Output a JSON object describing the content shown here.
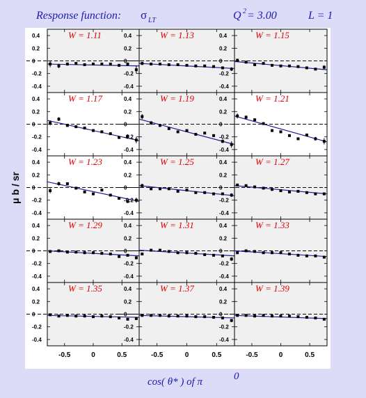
{
  "header": {
    "response_label": "Response function:",
    "sigma_base": "σ",
    "sigma_sub": "LT",
    "q2_prefix": "Q",
    "q2_sup": "2",
    "q2_value": " = 3.00",
    "l_label": "L = 1"
  },
  "y_axis_label": "μ b / sr",
  "x_axis_label": {
    "prefix": "cos( θ* )  of  π",
    "sup": "0"
  },
  "colors": {
    "background": "#dcdcf8",
    "panel_shaded": "#f0f0f0",
    "panel_white": "#ffffff",
    "fit_line": "#1c1c9c",
    "w_label": "#e00000",
    "header_text": "#1a1ab0"
  },
  "chart_data": {
    "type": "scatter",
    "grid": {
      "rows": 5,
      "cols": 3
    },
    "xlim": [
      -0.8,
      0.8
    ],
    "ylim": [
      -0.5,
      0.5
    ],
    "x_ticks": [
      "-0.5",
      "0",
      "0.5"
    ],
    "y_ticks": [
      "0.4",
      "0.2",
      "0",
      "-0.2",
      "-0.4"
    ],
    "x": [
      -0.75,
      -0.6,
      -0.45,
      -0.3,
      -0.15,
      0,
      0.15,
      0.3,
      0.45,
      0.6,
      0.75
    ],
    "panels": [
      {
        "label": "W = 1.11",
        "shaded": true,
        "y": [
          -0.05,
          -0.08,
          -0.05,
          -0.04,
          -0.06,
          -0.05,
          -0.05,
          -0.05,
          -0.07,
          -0.05,
          -0.14
        ],
        "err": [
          0.05,
          0.035,
          0.025,
          0.02,
          0.02,
          0.02,
          0.02,
          0.02,
          0.02,
          0.025,
          0.06
        ],
        "fit": [
          -0.05,
          -0.08
        ]
      },
      {
        "label": "W = 1.13",
        "shaded": true,
        "y": [
          -0.04,
          -0.05,
          -0.05,
          -0.06,
          -0.06,
          -0.07,
          -0.08,
          -0.08,
          -0.09,
          -0.11,
          -0.13
        ],
        "err": [
          0.025,
          0.015,
          0.012,
          0.01,
          0.01,
          0.01,
          0.01,
          0.01,
          0.012,
          0.015,
          0.03
        ],
        "fit": [
          -0.04,
          -0.12
        ]
      },
      {
        "label": "W = 1.15",
        "shaded": true,
        "y": [
          0.01,
          -0.02,
          -0.06,
          -0.04,
          -0.07,
          -0.08,
          -0.08,
          -0.09,
          -0.11,
          -0.13,
          -0.1
        ],
        "err": [
          0.025,
          0.015,
          0.012,
          0.01,
          0.01,
          0.01,
          0.01,
          0.01,
          0.012,
          0.015,
          0.03
        ],
        "fit": [
          -0.01,
          -0.14
        ]
      },
      {
        "label": "W = 1.17",
        "shaded": false,
        "y": [
          0.02,
          0.08,
          -0.02,
          -0.04,
          -0.06,
          -0.1,
          -0.12,
          -0.15,
          -0.21,
          -0.19,
          -0.25
        ],
        "err": [
          0.04,
          0.03,
          0.02,
          0.015,
          0.015,
          0.015,
          0.015,
          0.015,
          0.02,
          0.03,
          0.05
        ],
        "fit": [
          0.06,
          -0.26
        ]
      },
      {
        "label": "W = 1.19",
        "shaded": true,
        "y": [
          0.12,
          0.02,
          -0.02,
          -0.07,
          -0.12,
          -0.1,
          -0.16,
          -0.14,
          -0.18,
          -0.27,
          -0.32
        ],
        "err": [
          0.04,
          0.03,
          0.02,
          0.015,
          0.015,
          0.015,
          0.015,
          0.015,
          0.02,
          0.03,
          0.05
        ],
        "fit": [
          0.08,
          -0.32
        ]
      },
      {
        "label": "W = 1.21",
        "shaded": false,
        "y": [
          0.13,
          0.11,
          0.07,
          0.01,
          -0.1,
          -0.12,
          -0.18,
          -0.23,
          -0.17,
          -0.23,
          -0.27
        ],
        "err": [
          0.04,
          0.03,
          0.02,
          0.015,
          0.015,
          0.015,
          0.015,
          0.015,
          0.02,
          0.03,
          0.05
        ],
        "fit": [
          0.13,
          -0.28
        ]
      },
      {
        "label": "W = 1.23",
        "shaded": false,
        "y": [
          -0.05,
          0.06,
          0.06,
          -0.01,
          -0.07,
          -0.1,
          -0.04,
          -0.12,
          -0.17,
          -0.22,
          -0.2
        ],
        "err": [
          0.04,
          0.03,
          0.02,
          0.015,
          0.015,
          0.015,
          0.015,
          0.015,
          0.02,
          0.025,
          0.04
        ],
        "fit": [
          0.09,
          -0.22
        ]
      },
      {
        "label": "W = 1.25",
        "shaded": true,
        "y": [
          0.03,
          -0.02,
          -0.02,
          -0.02,
          -0.06,
          -0.04,
          -0.08,
          -0.08,
          -0.1,
          -0.1,
          -0.12
        ],
        "err": [
          0.03,
          0.02,
          0.015,
          0.012,
          0.012,
          0.012,
          0.012,
          0.012,
          0.015,
          0.02,
          0.03
        ],
        "fit": [
          0.03,
          -0.13
        ]
      },
      {
        "label": "W = 1.27",
        "shaded": true,
        "y": [
          0.04,
          0.03,
          0.01,
          -0.01,
          -0.03,
          -0.05,
          -0.07,
          -0.06,
          -0.08,
          -0.1,
          -0.1
        ],
        "err": [
          0.02,
          0.015,
          0.012,
          0.01,
          0.01,
          0.01,
          0.01,
          0.01,
          0.012,
          0.015,
          0.02
        ],
        "fit": [
          0.03,
          -0.1
        ]
      },
      {
        "label": "W = 1.29",
        "shaded": true,
        "y": [
          -0.01,
          0,
          -0.02,
          -0.02,
          -0.03,
          -0.03,
          -0.04,
          -0.05,
          -0.09,
          -0.07,
          -0.11
        ],
        "err": [
          0.02,
          0.015,
          0.012,
          0.01,
          0.01,
          0.01,
          0.01,
          0.01,
          0.012,
          0.015,
          0.025
        ],
        "fit": [
          0,
          -0.08
        ]
      },
      {
        "label": "W = 1.31",
        "shaded": true,
        "y": [
          -0.05,
          0.01,
          0.01,
          -0.01,
          -0.03,
          -0.03,
          -0.04,
          -0.06,
          -0.07,
          -0.08,
          -0.13
        ],
        "err": [
          0.02,
          0.015,
          0.012,
          0.01,
          0.01,
          0.01,
          0.01,
          0.01,
          0.012,
          0.015,
          0.03
        ],
        "fit": [
          0.01,
          -0.08
        ]
      },
      {
        "label": "W = 1.33",
        "shaded": true,
        "y": [
          -0.03,
          0,
          -0.01,
          -0.03,
          -0.03,
          -0.03,
          -0.05,
          -0.07,
          -0.08,
          -0.08,
          -0.1
        ],
        "err": [
          0.02,
          0.015,
          0.012,
          0.01,
          0.01,
          0.01,
          0.01,
          0.01,
          0.012,
          0.015,
          0.02
        ],
        "fit": [
          0,
          -0.09
        ]
      },
      {
        "label": "W = 1.35",
        "shaded": true,
        "y": [
          -0.01,
          -0.03,
          -0.02,
          -0.03,
          -0.03,
          -0.04,
          -0.03,
          -0.04,
          -0.06,
          -0.08,
          -0.07
        ],
        "err": [
          0.02,
          0.015,
          0.012,
          0.01,
          0.01,
          0.01,
          0.01,
          0.01,
          0.012,
          0.015,
          0.02
        ],
        "fit": [
          -0.02,
          -0.05
        ]
      },
      {
        "label": "W = 1.37",
        "shaded": true,
        "y": [
          -0.02,
          -0.02,
          -0.02,
          -0.03,
          -0.03,
          -0.03,
          -0.04,
          -0.04,
          -0.05,
          -0.06,
          -0.1
        ],
        "err": [
          0.02,
          0.015,
          0.012,
          0.01,
          0.01,
          0.01,
          0.01,
          0.01,
          0.012,
          0.015,
          0.025
        ],
        "fit": [
          -0.02,
          -0.06
        ]
      },
      {
        "label": "W = 1.39",
        "shaded": true,
        "y": [
          -0.02,
          -0.02,
          -0.03,
          -0.02,
          -0.03,
          -0.03,
          -0.03,
          -0.04,
          -0.05,
          -0.06,
          -0.08
        ],
        "err": [
          0.02,
          0.015,
          0.012,
          0.01,
          0.01,
          0.01,
          0.01,
          0.01,
          0.012,
          0.015,
          0.02
        ],
        "fit": [
          -0.02,
          -0.07
        ]
      }
    ]
  }
}
